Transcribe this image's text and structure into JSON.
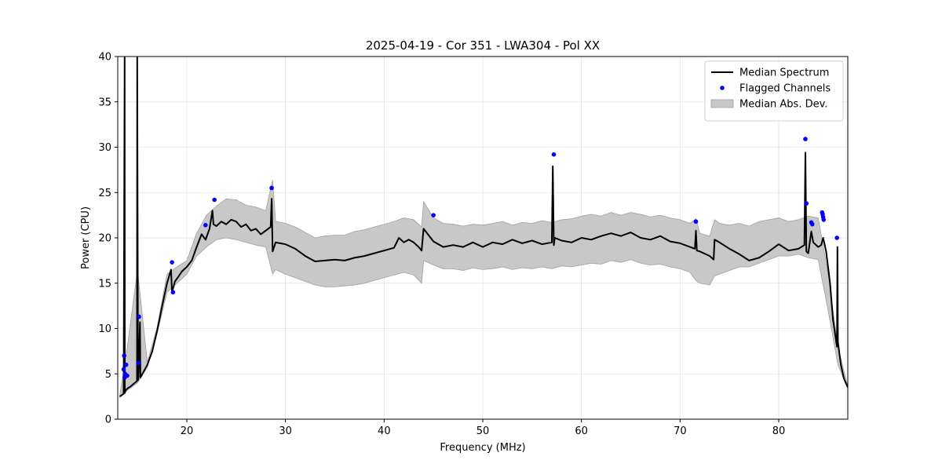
{
  "chart_data": {
    "type": "line",
    "title": "2025-04-19 - Cor 351 - LWA304 - Pol XX",
    "xlabel": "Frequency (MHz)",
    "ylabel": "Power (CPU)",
    "xlim": [
      13,
      87
    ],
    "ylim": [
      0,
      40
    ],
    "xticks": [
      20,
      30,
      40,
      50,
      60,
      70,
      80
    ],
    "yticks": [
      0,
      5,
      10,
      15,
      20,
      25,
      30,
      35,
      40
    ],
    "grid": true,
    "legend_position": "top-right",
    "colors": {
      "median": "#000000",
      "flagged": "#0000ff",
      "mad_fill": "#c8c8c8",
      "mad_edge": "#a0a0a0"
    },
    "legend": [
      {
        "label": "Median Spectrum",
        "kind": "line"
      },
      {
        "label": "Flagged Channels",
        "kind": "marker"
      },
      {
        "label": "Median Abs. Dev.",
        "kind": "patch"
      }
    ],
    "series": [
      {
        "name": "Median Spectrum",
        "x": [
          13.2,
          13.6,
          13.7,
          13.72,
          13.8,
          14.0,
          14.3,
          14.6,
          14.95,
          14.97,
          15.05,
          15.1,
          15.25,
          15.3,
          15.5,
          16.0,
          16.5,
          17.0,
          17.5,
          18.0,
          18.4,
          18.5,
          18.8,
          19.2,
          19.5,
          20.0,
          20.5,
          21.0,
          21.5,
          21.9,
          22.3,
          22.6,
          22.7,
          23.0,
          23.5,
          24.0,
          24.5,
          25.0,
          25.5,
          26.0,
          26.5,
          27.0,
          27.5,
          28.0,
          28.5,
          28.6,
          28.7,
          29.0,
          30.0,
          31.0,
          32.0,
          33.0,
          34.0,
          35.0,
          36.0,
          37.0,
          38.0,
          39.0,
          40.0,
          41.0,
          41.5,
          42.0,
          42.5,
          43.0,
          43.5,
          43.8,
          44.0,
          45.0,
          46.0,
          47.0,
          48.0,
          49.0,
          50.0,
          51.0,
          52.0,
          53.0,
          54.0,
          55.0,
          56.0,
          57.0,
          57.1,
          57.2,
          57.3,
          58.0,
          59.0,
          60.0,
          61.0,
          62.0,
          63.0,
          64.0,
          65.0,
          66.0,
          67.0,
          68.0,
          69.0,
          70.0,
          71.0,
          71.5,
          71.6,
          71.7,
          72.0,
          73.0,
          73.4,
          73.5,
          74.0,
          75.0,
          76.0,
          77.0,
          78.0,
          79.0,
          80.0,
          81.0,
          82.0,
          82.6,
          82.7,
          82.8,
          83.0,
          83.3,
          83.5,
          84.0,
          84.3,
          84.5,
          84.8,
          85.2,
          85.5,
          85.9,
          85.95,
          86.0,
          86.3,
          86.6,
          87.0
        ],
        "y": [
          2.5,
          2.8,
          40,
          2.9,
          3.2,
          3.4,
          3.6,
          3.9,
          4.2,
          40,
          4.3,
          4.5,
          10.7,
          4.6,
          5.0,
          6.0,
          7.5,
          9.8,
          12.5,
          15.0,
          16.5,
          14.0,
          15.2,
          15.8,
          16.3,
          16.8,
          17.5,
          19.0,
          20.4,
          19.8,
          21.0,
          23.0,
          21.5,
          21.3,
          21.8,
          21.5,
          22.0,
          21.8,
          21.2,
          21.5,
          20.8,
          21.0,
          20.4,
          20.8,
          21.2,
          24.3,
          18.5,
          19.5,
          19.3,
          18.8,
          18.0,
          17.4,
          17.5,
          17.6,
          17.5,
          17.8,
          18.0,
          18.3,
          18.6,
          18.9,
          20.0,
          19.5,
          19.8,
          19.5,
          19.0,
          18.6,
          21.0,
          19.6,
          19.0,
          19.2,
          19.0,
          19.5,
          19.0,
          19.5,
          19.3,
          19.8,
          19.4,
          19.7,
          19.3,
          19.5,
          27.9,
          19.2,
          20.0,
          19.7,
          19.5,
          20.0,
          19.8,
          20.2,
          20.5,
          20.2,
          20.6,
          20.0,
          19.8,
          20.2,
          19.6,
          19.4,
          19.0,
          18.8,
          20.8,
          18.6,
          18.5,
          18.0,
          17.6,
          19.8,
          19.5,
          18.8,
          18.2,
          17.5,
          17.8,
          18.5,
          19.3,
          18.6,
          18.8,
          19.2,
          29.4,
          18.5,
          18.3,
          20.7,
          19.5,
          19.0,
          19.2,
          20.0,
          18.5,
          15.0,
          11.0,
          8.0,
          19.0,
          8.5,
          6.0,
          4.5,
          3.5
        ]
      },
      {
        "name": "Flagged Channels",
        "x": [
          13.6,
          13.65,
          13.7,
          13.75,
          13.85,
          13.95,
          15.08,
          15.15,
          18.5,
          18.6,
          21.9,
          22.8,
          28.6,
          45.0,
          57.2,
          71.6,
          82.7,
          82.8,
          83.3,
          83.4,
          84.4,
          84.45,
          84.5,
          84.55,
          85.9
        ],
        "y": [
          5.5,
          7.0,
          4.6,
          5.0,
          6.0,
          4.8,
          6.2,
          11.3,
          17.3,
          14.0,
          21.4,
          24.2,
          25.5,
          22.5,
          29.2,
          21.8,
          30.9,
          23.8,
          21.7,
          21.5,
          22.8,
          22.6,
          22.3,
          22.0,
          20.0
        ]
      },
      {
        "name": "Median Abs. Dev.",
        "x": [
          13.2,
          14.0,
          15.0,
          16.0,
          17.0,
          18.0,
          19.0,
          20.0,
          21.0,
          22.0,
          23.0,
          24.0,
          25.0,
          26.0,
          27.0,
          28.0,
          28.7,
          29.0,
          30.0,
          31.0,
          32.0,
          33.0,
          34.0,
          35.0,
          36.0,
          37.0,
          38.0,
          39.0,
          40.0,
          41.0,
          42.0,
          43.0,
          43.8,
          44.0,
          45.0,
          46.0,
          47.0,
          48.0,
          49.0,
          50.0,
          51.0,
          52.0,
          53.0,
          54.0,
          55.0,
          56.0,
          57.0,
          58.0,
          59.0,
          60.0,
          61.0,
          62.0,
          63.0,
          64.0,
          65.0,
          66.0,
          67.0,
          68.0,
          69.0,
          70.0,
          71.0,
          71.6,
          72.0,
          73.0,
          73.5,
          74.0,
          75.0,
          76.0,
          77.0,
          78.0,
          79.0,
          80.0,
          81.0,
          82.0,
          83.0,
          84.0,
          85.0,
          86.0,
          87.0
        ],
        "y_low": [
          2.4,
          3.2,
          4.0,
          5.7,
          9.5,
          14.0,
          15.0,
          16.0,
          18.0,
          19.0,
          19.8,
          20.0,
          19.8,
          19.5,
          19.2,
          19.0,
          16.0,
          16.5,
          16.0,
          15.6,
          15.2,
          14.8,
          14.6,
          14.6,
          14.7,
          14.8,
          15.0,
          15.3,
          15.6,
          15.9,
          16.2,
          15.9,
          15.0,
          17.5,
          17.0,
          16.6,
          16.6,
          16.4,
          16.7,
          16.5,
          16.6,
          16.8,
          16.5,
          16.7,
          16.6,
          16.8,
          16.6,
          16.9,
          16.8,
          17.0,
          17.2,
          17.1,
          17.5,
          17.3,
          17.6,
          17.2,
          17.0,
          17.1,
          16.8,
          16.6,
          16.2,
          15.3,
          15.0,
          14.8,
          15.8,
          16.0,
          16.4,
          16.8,
          16.8,
          17.2,
          17.6,
          18.0,
          18.0,
          18.2,
          17.8,
          17.6,
          12.0,
          6.0,
          3.4
        ],
        "y_high": [
          2.6,
          8.2,
          16.5,
          6.3,
          10.2,
          16.0,
          16.8,
          17.5,
          20.5,
          22.5,
          23.5,
          24.3,
          24.2,
          23.6,
          23.4,
          23.0,
          26.4,
          21.8,
          21.6,
          21.2,
          20.6,
          20.0,
          20.2,
          20.3,
          20.3,
          20.7,
          20.9,
          21.2,
          21.5,
          21.8,
          22.2,
          22.0,
          21.2,
          24.0,
          22.2,
          21.6,
          21.5,
          21.3,
          21.5,
          21.4,
          21.6,
          21.8,
          21.4,
          21.7,
          21.6,
          21.9,
          21.7,
          22.0,
          22.1,
          22.4,
          22.6,
          22.4,
          22.8,
          22.5,
          22.8,
          22.6,
          22.3,
          22.5,
          22.2,
          22.0,
          21.6,
          22.1,
          20.5,
          20.2,
          22.0,
          21.6,
          21.4,
          21.6,
          21.3,
          21.8,
          22.0,
          22.2,
          21.8,
          22.0,
          22.4,
          22.2,
          16.0,
          8.0,
          3.6
        ]
      }
    ]
  }
}
